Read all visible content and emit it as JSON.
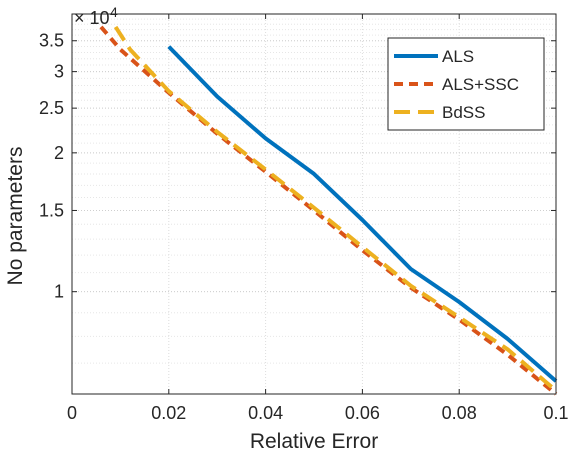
{
  "chart_data": {
    "type": "line",
    "title": "",
    "xlabel": "Relative Error",
    "ylabel": "No parameters",
    "y_exponent_label": "× 10",
    "y_exponent": "4",
    "y_scale": "log",
    "x_range": [
      0,
      0.1
    ],
    "y_range": [
      0.6,
      4.0
    ],
    "x_ticks": [
      0,
      0.02,
      0.04,
      0.06,
      0.08,
      0.1
    ],
    "x_tick_labels": [
      "0",
      "0.02",
      "0.04",
      "0.06",
      "0.08",
      "0.1"
    ],
    "y_ticks": [
      1,
      1.5,
      2,
      2.5,
      3,
      3.5
    ],
    "y_tick_labels": [
      "1",
      "1.5",
      "2",
      "2.5",
      "3",
      "3.5"
    ],
    "grid": true,
    "legend_position": "top-right",
    "series": [
      {
        "name": "ALS",
        "color": "#0072BD",
        "dash": "solid",
        "x": [
          0.02,
          0.03,
          0.04,
          0.05,
          0.06,
          0.07,
          0.08,
          0.09,
          0.1
        ],
        "y": [
          3.4,
          2.65,
          2.15,
          1.8,
          1.43,
          1.12,
          0.95,
          0.79,
          0.64
        ]
      },
      {
        "name": "ALS+SSC",
        "color": "#D95319",
        "dash": "dash",
        "x": [
          0.006,
          0.01,
          0.02,
          0.03,
          0.04,
          0.05,
          0.06,
          0.07,
          0.08,
          0.09,
          0.1
        ],
        "y": [
          3.75,
          3.35,
          2.7,
          2.2,
          1.82,
          1.5,
          1.23,
          1.02,
          0.87,
          0.73,
          0.6
        ]
      },
      {
        "name": "BdSS",
        "color": "#EDB120",
        "dash": "longdash",
        "x": [
          0.009,
          0.012,
          0.02,
          0.03,
          0.04,
          0.05,
          0.06,
          0.07,
          0.08,
          0.09,
          0.1
        ],
        "y": [
          3.75,
          3.35,
          2.72,
          2.22,
          1.84,
          1.52,
          1.25,
          1.03,
          0.88,
          0.75,
          0.61
        ]
      }
    ]
  }
}
